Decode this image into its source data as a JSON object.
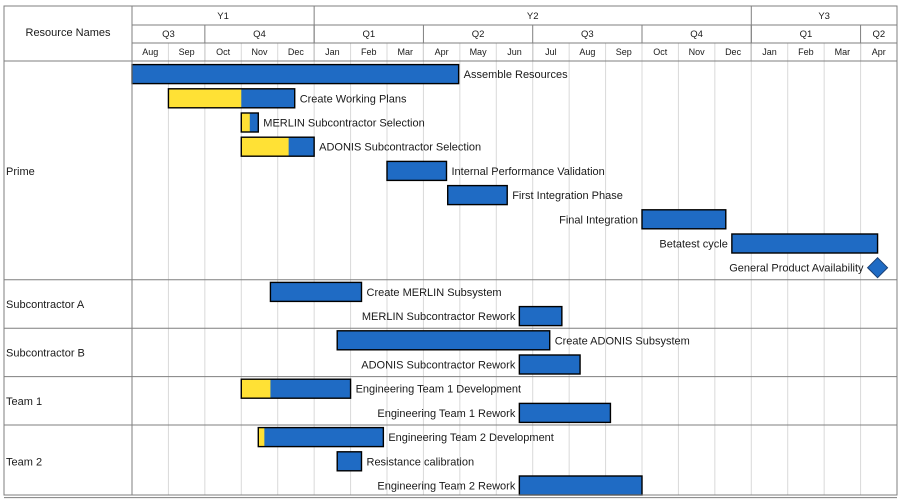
{
  "chart_data": {
    "type": "gantt",
    "resource_column_header": "Resource Names",
    "timeline": {
      "years": [
        {
          "label": "Y1",
          "from": "Aug",
          "to": "Dec",
          "start": "Y1-08",
          "end": "Y1-12"
        },
        {
          "label": "Y2",
          "from": "Jan",
          "to": "Dec",
          "start": "Y2-01",
          "end": "Y2-12"
        },
        {
          "label": "Y3",
          "from": "Jan",
          "to": "Apr",
          "start": "Y3-01",
          "end": "Y3-04"
        }
      ],
      "quarters": [
        {
          "label": "Q3",
          "start": "Y1-08",
          "end": "Y1-09"
        },
        {
          "label": "Q4",
          "start": "Y1-10",
          "end": "Y1-12"
        },
        {
          "label": "Q1",
          "start": "Y2-01",
          "end": "Y2-03"
        },
        {
          "label": "Q2",
          "start": "Y2-04",
          "end": "Y2-06"
        },
        {
          "label": "Q3",
          "start": "Y2-07",
          "end": "Y2-09"
        },
        {
          "label": "Q4",
          "start": "Y2-10",
          "end": "Y2-12"
        },
        {
          "label": "Q1",
          "start": "Y3-01",
          "end": "Y3-03"
        },
        {
          "label": "Q2",
          "start": "Y3-04",
          "end": "Y3-04"
        }
      ],
      "months": [
        "Aug",
        "Sep",
        "Oct",
        "Nov",
        "Dec",
        "Jan",
        "Feb",
        "Mar",
        "Apr",
        "May",
        "Jun",
        "Jul",
        "Aug",
        "Sep",
        "Oct",
        "Nov",
        "Dec",
        "Jan",
        "Feb",
        "Mar",
        "Apr"
      ]
    },
    "colors": {
      "bar": "#1f6bc4",
      "progress": "#ffe135",
      "border": "#000000",
      "grid": "#d9d9d9",
      "frame": "#7f7f7f",
      "milestone": "#1f6bc4"
    },
    "resources": [
      {
        "name": "Prime",
        "tasks": [
          {
            "name": "Assemble Resources",
            "start": "Y1-08-01",
            "end": "Y2-04-30",
            "progress_end": null,
            "label_side": "right"
          },
          {
            "name": "Create Working Plans",
            "start": "Y1-09-01",
            "end": "Y1-12-15",
            "progress_end": "Y1-10-31",
            "label_side": "right"
          },
          {
            "name": "MERLIN Subcontractor Selection",
            "start": "Y1-11-01",
            "end": "Y1-11-15",
            "progress_end": "Y1-11-08",
            "label_side": "right"
          },
          {
            "name": "ADONIS Subcontractor Selection",
            "start": "Y1-11-01",
            "end": "Y1-12-31",
            "progress_end": "Y1-12-10",
            "label_side": "right"
          },
          {
            "name": "Internal Performance Validation",
            "start": "Y2-03-01",
            "end": "Y2-04-20",
            "progress_end": null,
            "label_side": "right"
          },
          {
            "name": "First Integration Phase",
            "start": "Y2-04-21",
            "end": "Y2-06-10",
            "progress_end": null,
            "label_side": "right"
          },
          {
            "name": "Final Integration",
            "start": "Y2-10-01",
            "end": "Y2-12-10",
            "progress_end": null,
            "label_side": "left"
          },
          {
            "name": "Betatest cycle",
            "start": "Y2-12-15",
            "end": "Y3-04-15",
            "progress_end": null,
            "label_side": "left"
          },
          {
            "name": "General Product Availability",
            "milestone": true,
            "date": "Y3-04-15",
            "label_side": "left"
          }
        ]
      },
      {
        "name": "Subcontractor A",
        "tasks": [
          {
            "name": "Create MERLIN Subsystem",
            "start": "Y1-11-25",
            "end": "Y2-02-10",
            "progress_end": null,
            "label_side": "right"
          },
          {
            "name": "MERLIN Subcontractor Rework",
            "start": "Y2-06-20",
            "end": "Y2-07-25",
            "progress_end": null,
            "label_side": "left"
          }
        ]
      },
      {
        "name": "Subcontractor B",
        "tasks": [
          {
            "name": "Create ADONIS Subsystem",
            "start": "Y2-01-20",
            "end": "Y2-07-15",
            "progress_end": null,
            "label_side": "right"
          },
          {
            "name": "ADONIS Subcontractor Rework",
            "start": "Y2-06-20",
            "end": "Y2-08-10",
            "progress_end": null,
            "label_side": "left"
          }
        ]
      },
      {
        "name": "Team 1",
        "tasks": [
          {
            "name": "Engineering Team 1 Development",
            "start": "Y1-11-01",
            "end": "Y2-01-31",
            "progress_end": "Y1-11-25",
            "label_side": "right"
          },
          {
            "name": "Engineering Team 1 Rework",
            "start": "Y2-06-20",
            "end": "Y2-09-05",
            "progress_end": null,
            "label_side": "left"
          }
        ]
      },
      {
        "name": "Team 2",
        "tasks": [
          {
            "name": "Engineering Team 2 Development",
            "start": "Y1-11-15",
            "end": "Y2-02-28",
            "progress_end": "Y1-11-20",
            "label_side": "right"
          },
          {
            "name": "Resistance calibration",
            "start": "Y2-01-20",
            "end": "Y2-02-10",
            "progress_end": null,
            "label_side": "right"
          },
          {
            "name": "Engineering Team 2 Rework",
            "start": "Y2-06-20",
            "end": "Y2-10-01",
            "progress_end": null,
            "label_side": "left"
          }
        ]
      }
    ]
  }
}
